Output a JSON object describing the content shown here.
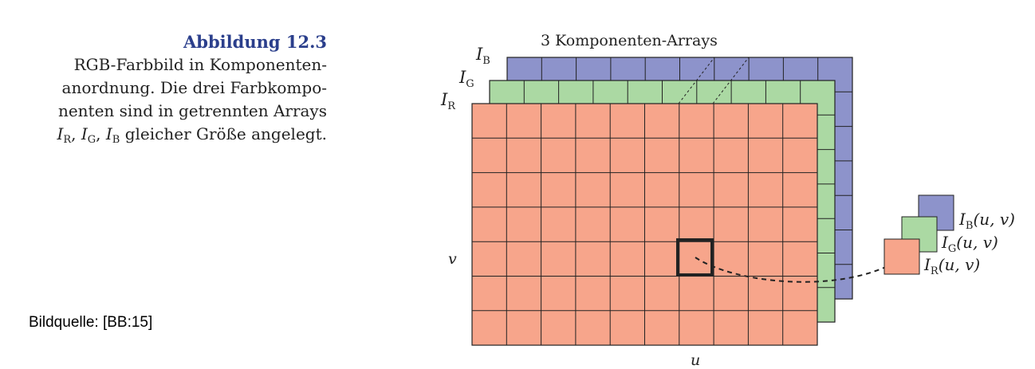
{
  "caption": {
    "title": "Abbildung 12.3",
    "line1": "RGB-Farbbild in Komponenten-",
    "line2": "anordnung. Die drei Farbkompo-",
    "line3": "nenten sind in getrennten Arrays",
    "line4_i": "I",
    "line4_sub_r": "R",
    "line4_sep1": ", ",
    "line4_sub_g": "G",
    "line4_sep2": ", ",
    "line4_sub_b": "B",
    "line4_rest": " gleicher Größe angelegt."
  },
  "source": "Bildquelle: [BB:15]",
  "diagram": {
    "heading": "3 Komponenten-Arrays",
    "array_symbol": "I",
    "sub_b": "B",
    "sub_g": "G",
    "sub_r": "R",
    "axis_u": "u",
    "axis_v": "v",
    "pixel_arg": "(u, v)",
    "colors": {
      "red": "#f7a58b",
      "green": "#abd9a3",
      "blue": "#8d93cb",
      "grid": "#222222"
    }
  }
}
